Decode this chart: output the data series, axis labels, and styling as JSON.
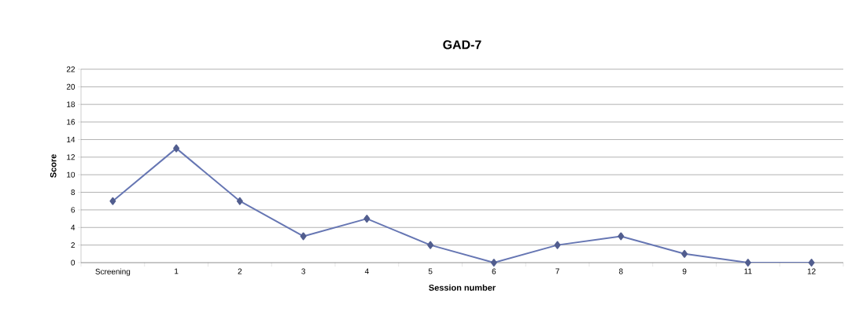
{
  "chart_data": {
    "type": "line",
    "title": "GAD-7",
    "xlabel": "Session number",
    "ylabel": "Score",
    "categories": [
      "Screening",
      "1",
      "2",
      "3",
      "4",
      "5",
      "6",
      "7",
      "8",
      "9",
      "11",
      "12"
    ],
    "values": [
      7,
      13,
      7,
      3,
      5,
      2,
      0,
      2,
      3,
      1,
      0,
      0
    ],
    "color": "#6676b3",
    "marker": "diamond",
    "grid": "y",
    "ylim": [
      0,
      22
    ],
    "yticks": [
      0,
      2,
      4,
      6,
      8,
      10,
      12,
      14,
      16,
      18,
      20,
      22
    ]
  }
}
